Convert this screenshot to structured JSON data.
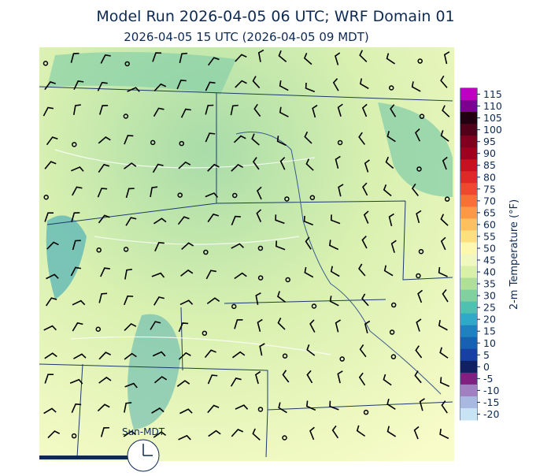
{
  "title": "Model Run 2026-04-05 06 UTC; WRF Domain 01",
  "subtitle": "2026-04-05 15 UTC  (2026-04-05 09 MDT)",
  "colorbar": {
    "label": "2-m Temperature (°F)",
    "ticks": [
      115,
      110,
      105,
      100,
      95,
      90,
      85,
      80,
      75,
      70,
      65,
      60,
      55,
      50,
      45,
      40,
      35,
      30,
      25,
      20,
      15,
      10,
      5,
      0,
      -5,
      -10,
      -15,
      -20
    ],
    "colors": [
      "#c000c0",
      "#7a0090",
      "#200010",
      "#500018",
      "#800020",
      "#a00020",
      "#c81020",
      "#e02828",
      "#f04830",
      "#f87038",
      "#fc9848",
      "#fcc060",
      "#fce080",
      "#fcf8b0",
      "#f0f8c0",
      "#d8f0a8",
      "#b0e098",
      "#80d0a0",
      "#50c0b0",
      "#30a8c8",
      "#2080c0",
      "#1860b0",
      "#1840a0",
      "#102060",
      "#802080",
      "#a080c0",
      "#a8b8e0",
      "#c8e4f4"
    ]
  },
  "clock_label": "Sun-MDT"
}
